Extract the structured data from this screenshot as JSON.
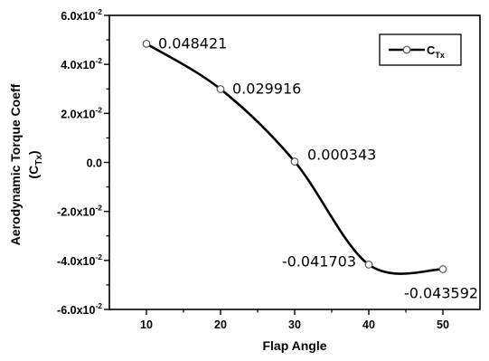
{
  "chart_data": {
    "type": "line",
    "xlabel": "Flap Angle",
    "ylabel_line1": "Aerodynamic Torque Coeff",
    "ylabel_line2_main": "(C",
    "ylabel_line2_sub": "Tx",
    "ylabel_line2_end": ")",
    "xlim": [
      5,
      55
    ],
    "ylim": [
      -0.06,
      0.06
    ],
    "x_ticks": [
      10,
      20,
      30,
      40,
      50
    ],
    "x_tick_labels": [
      "10",
      "20",
      "30",
      "40",
      "50"
    ],
    "y_ticks": [
      -0.06,
      -0.04,
      -0.02,
      0.0,
      0.02,
      0.04,
      0.06
    ],
    "y_tick_labels": [
      {
        "mant": "-6.0x10",
        "exp": "-2"
      },
      {
        "mant": "-4.0x10",
        "exp": "-2"
      },
      {
        "mant": "-2.0x10",
        "exp": "-2"
      },
      {
        "mant": "0.0",
        "exp": ""
      },
      {
        "mant": "2.0x10",
        "exp": "-2"
      },
      {
        "mant": "4.0x10",
        "exp": "-2"
      },
      {
        "mant": "6.0x10",
        "exp": "-2"
      }
    ],
    "series": [
      {
        "name_main": "C",
        "name_sub": "Tx",
        "color": "#000000",
        "marker": "open-circle",
        "x": [
          10,
          20,
          30,
          40,
          50
        ],
        "y": [
          0.048421,
          0.029916,
          0.000343,
          -0.041703,
          -0.043592
        ],
        "labels": [
          "0.048421",
          "0.029916",
          "0.000343",
          "-0.041703",
          "-0.043592"
        ]
      }
    ],
    "legend_position": "top-right",
    "grid": false,
    "smooth": true
  }
}
